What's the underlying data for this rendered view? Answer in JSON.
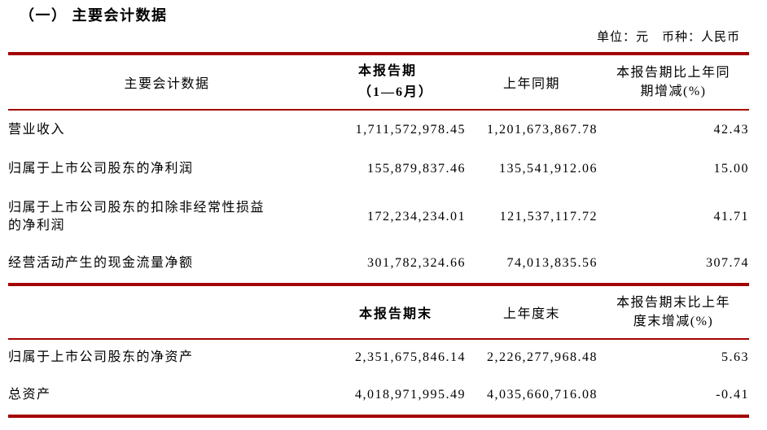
{
  "page": {
    "title": "（一） 主要会计数据",
    "unit_note": "单位：元　币种：人民币"
  },
  "colors": {
    "rule_red": "#a40000",
    "text": "#000000"
  },
  "table1": {
    "headers": {
      "col1": "主要会计数据",
      "col2_line1": "本报告期",
      "col2_line2": "（1—6月）",
      "col3": "上年同期",
      "col4": "本报告期比上年同\n期增减(%)"
    },
    "rows": [
      {
        "label": "营业收入",
        "current": "1,711,572,978.45",
        "prior": "1,201,673,867.78",
        "change": "42.43"
      },
      {
        "label": "归属于上市公司股东的净利润",
        "current": "155,879,837.46",
        "prior": "135,541,912.06",
        "change": "15.00"
      },
      {
        "label": "归属于上市公司股东的扣除非经常性损益\n的净利润",
        "current": "172,234,234.01",
        "prior": "121,537,117.72",
        "change": "41.71"
      },
      {
        "label": "经营活动产生的现金流量净额",
        "current": "301,782,324.66",
        "prior": "74,013,835.56",
        "change": "307.74"
      }
    ]
  },
  "table2": {
    "headers": {
      "col1": "",
      "col2": "本报告期末",
      "col3": "上年度末",
      "col4": "本报告期末比上年\n度末增减(%)"
    },
    "rows": [
      {
        "label": "归属于上市公司股东的净资产",
        "current": "2,351,675,846.14",
        "prior": "2,226,277,968.48",
        "change": "5.63"
      },
      {
        "label": "总资产",
        "current": "4,018,971,995.49",
        "prior": "4,035,660,716.08",
        "change": "-0.41"
      }
    ]
  }
}
